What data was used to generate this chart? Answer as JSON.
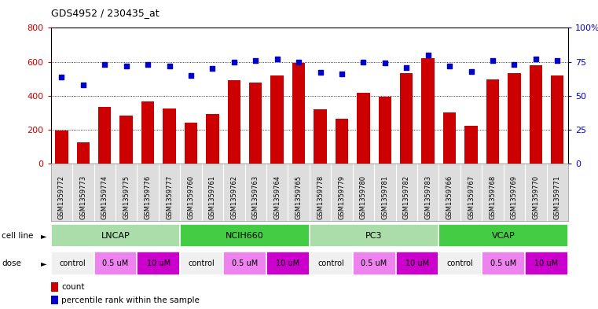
{
  "title": "GDS4952 / 230435_at",
  "samples": [
    "GSM1359772",
    "GSM1359773",
    "GSM1359774",
    "GSM1359775",
    "GSM1359776",
    "GSM1359777",
    "GSM1359760",
    "GSM1359761",
    "GSM1359762",
    "GSM1359763",
    "GSM1359764",
    "GSM1359765",
    "GSM1359778",
    "GSM1359779",
    "GSM1359780",
    "GSM1359781",
    "GSM1359782",
    "GSM1359783",
    "GSM1359766",
    "GSM1359767",
    "GSM1359768",
    "GSM1359769",
    "GSM1359770",
    "GSM1359771"
  ],
  "counts": [
    195,
    125,
    335,
    285,
    365,
    325,
    240,
    295,
    490,
    480,
    520,
    595,
    320,
    265,
    420,
    395,
    535,
    620,
    300,
    225,
    495,
    535,
    580,
    520
  ],
  "percentiles": [
    64,
    58,
    73,
    72,
    73,
    72,
    65,
    70,
    75,
    76,
    77,
    75,
    67,
    66,
    75,
    74,
    71,
    80,
    72,
    68,
    76,
    73,
    77,
    76
  ],
  "cell_line_groups": [
    {
      "name": "LNCAP",
      "start": 0,
      "end": 5,
      "color": "#aaddaa"
    },
    {
      "name": "NCIH660",
      "start": 6,
      "end": 11,
      "color": "#44cc44"
    },
    {
      "name": "PC3",
      "start": 12,
      "end": 17,
      "color": "#aaddaa"
    },
    {
      "name": "VCAP",
      "start": 18,
      "end": 23,
      "color": "#44cc44"
    }
  ],
  "dose_colors": {
    "control": "#f0f0f0",
    "0.5 uM": "#ee82ee",
    "10 uM": "#cc00cc"
  },
  "dose_groups": [
    {
      "label": "control",
      "start": 0,
      "end": 1
    },
    {
      "label": "0.5 uM",
      "start": 2,
      "end": 3
    },
    {
      "label": "10 uM",
      "start": 4,
      "end": 5
    },
    {
      "label": "control",
      "start": 6,
      "end": 7
    },
    {
      "label": "0.5 uM",
      "start": 8,
      "end": 9
    },
    {
      "label": "10 uM",
      "start": 10,
      "end": 11
    },
    {
      "label": "control",
      "start": 12,
      "end": 13
    },
    {
      "label": "0.5 uM",
      "start": 14,
      "end": 15
    },
    {
      "label": "10 uM",
      "start": 16,
      "end": 17
    },
    {
      "label": "control",
      "start": 18,
      "end": 19
    },
    {
      "label": "0.5 uM",
      "start": 20,
      "end": 21
    },
    {
      "label": "10 uM",
      "start": 22,
      "end": 23
    }
  ],
  "bar_color": "#cc0000",
  "dot_color": "#0000cc",
  "ylim_left": [
    0,
    800
  ],
  "ylim_right": [
    0,
    100
  ],
  "yticks_left": [
    0,
    200,
    400,
    600,
    800
  ],
  "yticks_right": [
    0,
    25,
    50,
    75,
    100
  ],
  "ylabel_left_color": "#cc0000",
  "ylabel_right_color": "#0000cc",
  "background_color": "#ffffff",
  "grid_color": "#000000",
  "sample_bg_color": "#dddddd"
}
